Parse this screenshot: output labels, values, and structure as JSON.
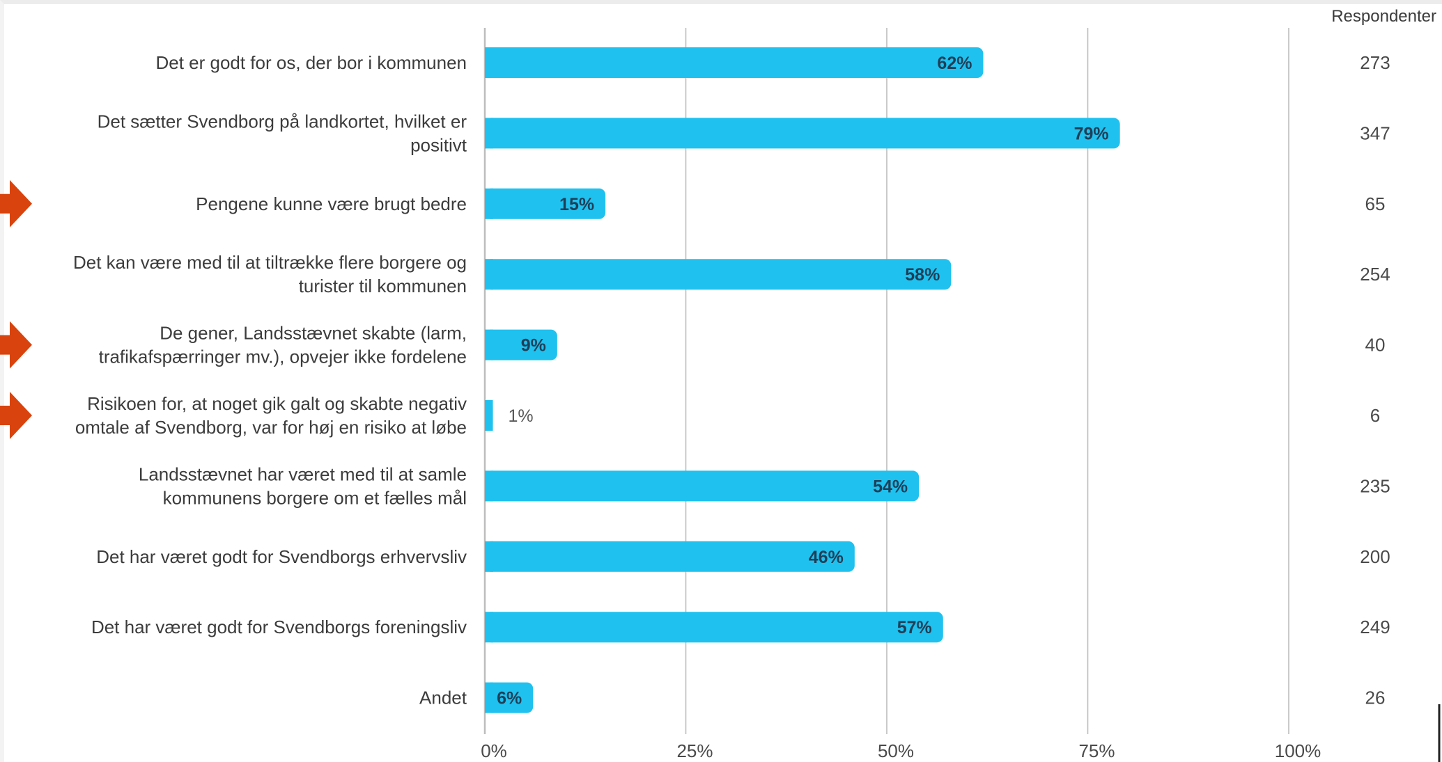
{
  "colors": {
    "bar": "#1fc1ef",
    "grid": "#bdbdbd",
    "arrow": "#d9430d"
  },
  "chart_data": {
    "type": "bar",
    "orientation": "horizontal",
    "categories": [
      "Det er godt for os, der bor i kommunen",
      "Det sætter Svendborg på landkortet, hvilket er positivt",
      "Pengene kunne være brugt bedre",
      "Det kan være med til at tiltrække flere borgere og turister til kommunen",
      "De gener, Landsstævnet skabte (larm, trafikafspærringer mv.), opvejer ikke fordelene",
      "Risikoen for, at noget gik galt og skabte negativ omtale af Svendborg, var for høj en risiko at løbe",
      "Landsstævnet har været med til at samle kommunens borgere om et fælles mål",
      "Det har været godt for Svendborgs erhvervsliv",
      "Det har været godt for Svendborgs foreningsliv",
      "Andet"
    ],
    "category_lines": [
      [
        "Det er godt for os, der bor i kommunen"
      ],
      [
        "Det sætter Svendborg på landkortet, hvilket er",
        "positivt"
      ],
      [
        "Pengene kunne være brugt bedre"
      ],
      [
        "Det kan være med til at tiltrække flere borgere og",
        "turister til kommunen"
      ],
      [
        "De gener, Landsstævnet skabte (larm,",
        "trafikafspærringer mv.), opvejer ikke fordelene"
      ],
      [
        "Risikoen for, at noget gik galt og skabte negativ",
        "omtale af Svendborg, var for høj en risiko at løbe"
      ],
      [
        "Landsstævnet har været med til at samle",
        "kommunens borgere om et fælles mål"
      ],
      [
        "Det har været godt for Svendborgs erhvervsliv"
      ],
      [
        "Det har været godt for Svendborgs foreningsliv"
      ],
      [
        "Andet"
      ]
    ],
    "values": [
      62,
      79,
      15,
      58,
      9,
      1,
      54,
      46,
      57,
      6
    ],
    "value_labels": [
      "62%",
      "79%",
      "15%",
      "58%",
      "9%",
      "1%",
      "54%",
      "46%",
      "57%",
      "6%"
    ],
    "respondents_header": "Respondenter",
    "respondents": [
      "273",
      "347",
      "65",
      "254",
      "40",
      "6",
      "235",
      "200",
      "249",
      "26"
    ],
    "xlim": [
      0,
      100
    ],
    "xticks": [
      0,
      25,
      50,
      75,
      100
    ],
    "xtick_labels": [
      "0%",
      "25%",
      "50%",
      "75%",
      "100%"
    ],
    "grid": true,
    "highlighted_categories": [
      2,
      4,
      5
    ]
  }
}
